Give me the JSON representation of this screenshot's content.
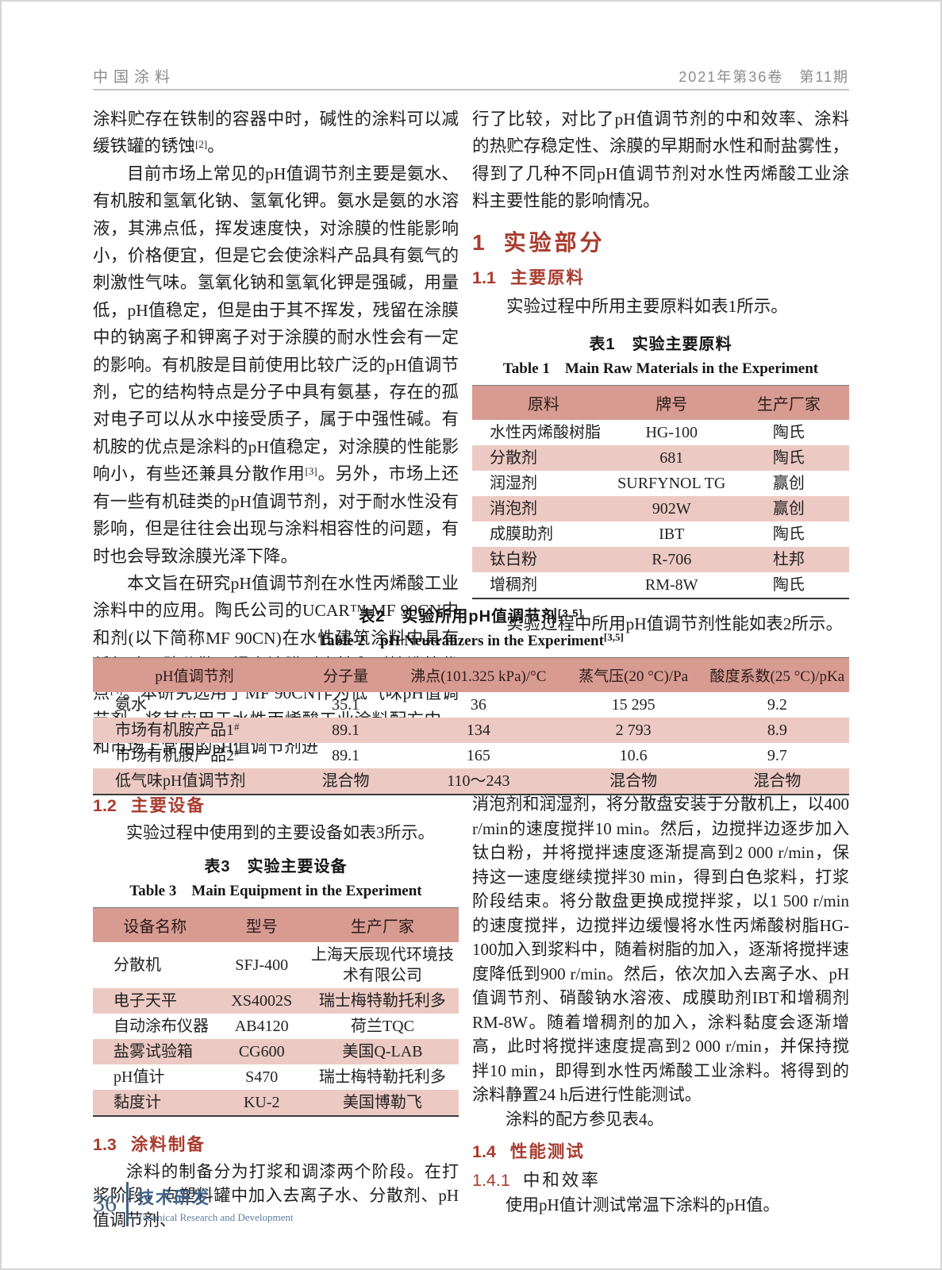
{
  "header": {
    "journal": "中国涂料",
    "issue": "2021年第36卷　第11期"
  },
  "sections": {
    "s1": {
      "num": "1",
      "label": "实验部分"
    },
    "s11": {
      "num": "1.1",
      "label": "主要原料"
    },
    "s12": {
      "num": "1.2",
      "label": "主要设备"
    },
    "s13": {
      "num": "1.3",
      "label": "涂料制备"
    },
    "s14": {
      "num": "1.4",
      "label": "性能测试"
    },
    "s141": {
      "num": "1.4.1",
      "label": "中和效率"
    }
  },
  "paragraphs": {
    "left_p1": [
      {
        "t": "tx",
        "v": "涂料贮存在铁制的容器中时，碱性的涂料可以减缓铁罐的锈蚀"
      },
      {
        "t": "sup",
        "v": "[2]"
      },
      {
        "t": "tx",
        "v": "。"
      }
    ],
    "left_p2": [
      {
        "t": "tx",
        "v": "目前市场上常见的pH值调节剂主要是氨水、有机胺和氢氧化钠、氢氧化钾。氨水是氨的水溶液，其沸点低，挥发速度快，对涂膜的性能影响小，价格便宜，但是它会使涂料产品具有氨气的刺激性气味。氢氧化钠和氢氧化钾是强碱，用量低，pH值稳定，但是由于其不挥发，残留在涂膜中的钠离子和钾离子对于涂膜的耐水性会有一定的影响。有机胺是目前使用比较广泛的pH值调节剂，它的结构特点是分子中具有氨基，存在的孤对电子可以从水中接受质子，属于中强性碱。有机胺的优点是涂料的pH值稳定，对涂膜的性能影响小，有些还兼具分散作用"
      },
      {
        "t": "sup",
        "v": "[3]"
      },
      {
        "t": "tx",
        "v": "。另外，市场上还有一些有机硅类的pH值调节剂，对于耐水性没有影响，但是往往会出现与涂料相容性的问题，有时也会导致涂膜光泽下降。"
      }
    ],
    "left_p3": [
      {
        "t": "tx",
        "v": "本文旨在研究pH值调节剂在水性丙烯酸工业涂料中的应用。陶氏公司的UCAR™ MF 90CN中和剂(以下简称MF 90CN)在水性建筑涂料中具有低气味、助分散、提高涂膜耐水性和耐擦洗等优点"
      },
      {
        "t": "sup",
        "v": "[4]"
      },
      {
        "t": "tx",
        "v": "。本研究选用了MF 90CN作为低气味pH值调节剂，将其应用于水性丙烯酸工业涂料配方中，和市场上常用的pH值调节剂进"
      }
    ],
    "right_p1": "行了比较，对比了pH值调节剂的中和效率、涂料的热贮存稳定性、涂膜的早期耐水性和耐盐雾性，得到了几种不同pH值调节剂对水性丙烯酸工业涂料主要性能的影响情况。",
    "right_p2": "实验过程中所用主要原料如表1所示。",
    "right_p3": "实验过程中所用pH值调节剂性能如表2所示。",
    "left_b1": "实验过程中使用到的主要设备如表3所示。",
    "left_b2": "涂料的制备分为打浆和调漆两个阶段。在打浆阶段，向塑料罐中加入去离子水、分散剂、pH值调节剂、",
    "right_b1": "消泡剂和润湿剂，将分散盘安装于分散机上，以400 r/min的速度搅拌10 min。然后，边搅拌边逐步加入钛白粉，并将搅拌速度逐渐提高到2 000 r/min，保持这一速度继续搅拌30 min，得到白色浆料，打浆阶段结束。将分散盘更换成搅拌浆，以1 500 r/min的速度搅拌，边搅拌边缓慢将水性丙烯酸树脂HG-100加入到浆料中，随着树脂的加入，逐渐将搅拌速度降低到900 r/min。然后，依次加入去离子水、pH值调节剂、硝酸钠水溶液、成膜助剂IBT和增稠剂RM-8W。随着增稠剂的加入，涂料黏度会逐渐增高，此时将搅拌速度提高到2 000 r/min，并保持搅拌10 min，即得到水性丙烯酸工业涂料。将得到的涂料静置24 h后进行性能测试。",
    "right_b2": "涂料的配方参见表4。",
    "right_b3": "使用pH值计测试常温下涂料的pH值。"
  },
  "tables": {
    "t1": {
      "title_cn": "表1　实验主要原料",
      "title_en": "Table 1　Main Raw Materials in the Experiment",
      "header": [
        "原料",
        "牌号",
        "生产厂家"
      ],
      "rows": [
        [
          "水性丙烯酸树脂",
          "HG-100",
          "陶氏"
        ],
        [
          "分散剂",
          "681",
          "陶氏"
        ],
        [
          "润湿剂",
          "SURFYNOL TG",
          "赢创"
        ],
        [
          "消泡剂",
          "902W",
          "赢创"
        ],
        [
          "成膜助剂",
          "IBT",
          "陶氏"
        ],
        [
          "钛白粉",
          "R-706",
          "杜邦"
        ],
        [
          "增稠剂",
          "RM-8W",
          "陶氏"
        ]
      ]
    },
    "t2": {
      "title_cn": "表2　实验所用pH值调节剂",
      "title_cn_sup": "[3,5]",
      "title_en": "Table 2　pH Neutralizers in the Experiment",
      "title_en_sup": "[3,5]",
      "header": [
        "pH值调节剂",
        "分子量",
        "沸点(101.325 kPa)/°C",
        "蒸气压(20 °C)/Pa",
        "酸度系数(25 °C)/pKa"
      ],
      "rows": [
        [
          "氨水",
          "35.1",
          "36",
          "15 295",
          "9.2"
        ],
        [
          "市场有机胺产品1#",
          "89.1",
          "134",
          "2 793",
          "8.9"
        ],
        [
          "市场有机胺产品2#",
          "89.1",
          "165",
          "10.6",
          "9.7"
        ],
        [
          "低气味pH值调节剂",
          "混合物",
          "110～243",
          "混合物",
          "混合物"
        ]
      ]
    },
    "t3": {
      "title_cn": "表3　实验主要设备",
      "title_en": "Table 3　Main Equipment in the Experiment",
      "header": [
        "设备名称",
        "型号",
        "生产厂家"
      ],
      "rows": [
        [
          "分散机",
          "SFJ-400",
          "上海天辰现代环境技术有限公司"
        ],
        [
          "电子天平",
          "XS4002S",
          "瑞士梅特勒托利多"
        ],
        [
          "自动涂布仪器",
          "AB4120",
          "荷兰TQC"
        ],
        [
          "盐雾试验箱",
          "CG600",
          "美国Q-LAB"
        ],
        [
          "pH值计",
          "S470",
          "瑞士梅特勒托利多"
        ],
        [
          "黏度计",
          "KU-2",
          "美国博勒飞"
        ]
      ]
    }
  },
  "footer": {
    "page_number": "36",
    "column_cn": "技术研发",
    "column_en": "Technical Research and Development"
  },
  "colors": {
    "heading_red": "#a83c2f",
    "table_header_bg": "#d79b92",
    "table_stripe_bg": "#eccac3",
    "footer_blue": "#3f6186"
  }
}
